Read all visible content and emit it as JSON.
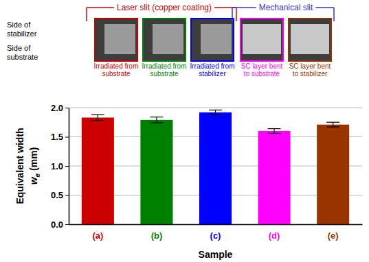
{
  "chart_data": {
    "type": "bar",
    "categories": [
      "(a)",
      "(b)",
      "(c)",
      "(d)",
      "(e)"
    ],
    "values": [
      1.83,
      1.79,
      1.92,
      1.6,
      1.71
    ],
    "errors": [
      0.05,
      0.05,
      0.04,
      0.04,
      0.04
    ],
    "colors": [
      "#cc0000",
      "#008000",
      "#0000ff",
      "#ff00ff",
      "#993300"
    ],
    "x_label": "Sample",
    "y_label": {
      "line1": "Equivalent width",
      "symbol": "w",
      "subscript": "e",
      "unit": "(mm)"
    },
    "ylim": [
      0,
      2.0
    ],
    "yticks": [
      {
        "value": 0,
        "label": "0.0"
      },
      0.5,
      {
        "value": 1.0,
        "label": "1.0"
      },
      1.5,
      {
        "value": 2.0,
        "label": "2.0"
      }
    ],
    "grid": true
  },
  "figure_panels": {
    "side_labels": [
      [
        "Side of",
        "stabilizer"
      ],
      [
        "Side of",
        "substrate"
      ]
    ],
    "groups": [
      {
        "title": "Laser slit (copper coating)",
        "color": "#cc0000",
        "panels": [
          {
            "caption": [
              "Irradiated from",
              "substrate"
            ],
            "color": "#cc0000"
          },
          {
            "caption": [
              "Irradiated from",
              "substrate"
            ],
            "color": "#008000"
          },
          {
            "caption": [
              "Irradiated from",
              "stabilizer"
            ],
            "color": "#0000ff"
          }
        ]
      },
      {
        "title": "Mechanical slit",
        "color": "#3333cc",
        "panels": [
          {
            "caption": [
              "SC layer bent",
              "to substrate"
            ],
            "color": "#ff00ff"
          },
          {
            "caption": [
              "SC layer bent",
              "to stabilizer"
            ],
            "color": "#993300"
          }
        ]
      }
    ]
  }
}
